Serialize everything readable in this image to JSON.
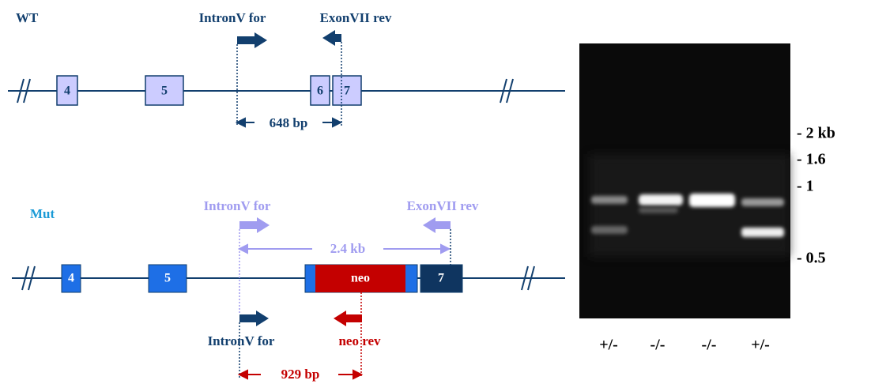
{
  "wt": {
    "label": "WT",
    "primer_for": "IntronV for",
    "primer_rev": "ExonVII rev",
    "exons": [
      "4",
      "5",
      "6",
      "7"
    ],
    "product": "648 bp"
  },
  "mut": {
    "label": "Mut",
    "primer_for": "IntronV for",
    "primer_rev": "ExonVII rev",
    "span": "2.4 kb",
    "exons": [
      "4",
      "5",
      "neo",
      "7"
    ],
    "primer_for2": "IntronV for",
    "primer_neo": "neo rev",
    "product": "929 bp"
  },
  "gel": {
    "markers": [
      "- 2 kb",
      "- 1.6",
      "- 1",
      "- 0.5"
    ],
    "lanes": [
      "+/-",
      "-/-",
      "-/-",
      "+/-"
    ]
  }
}
